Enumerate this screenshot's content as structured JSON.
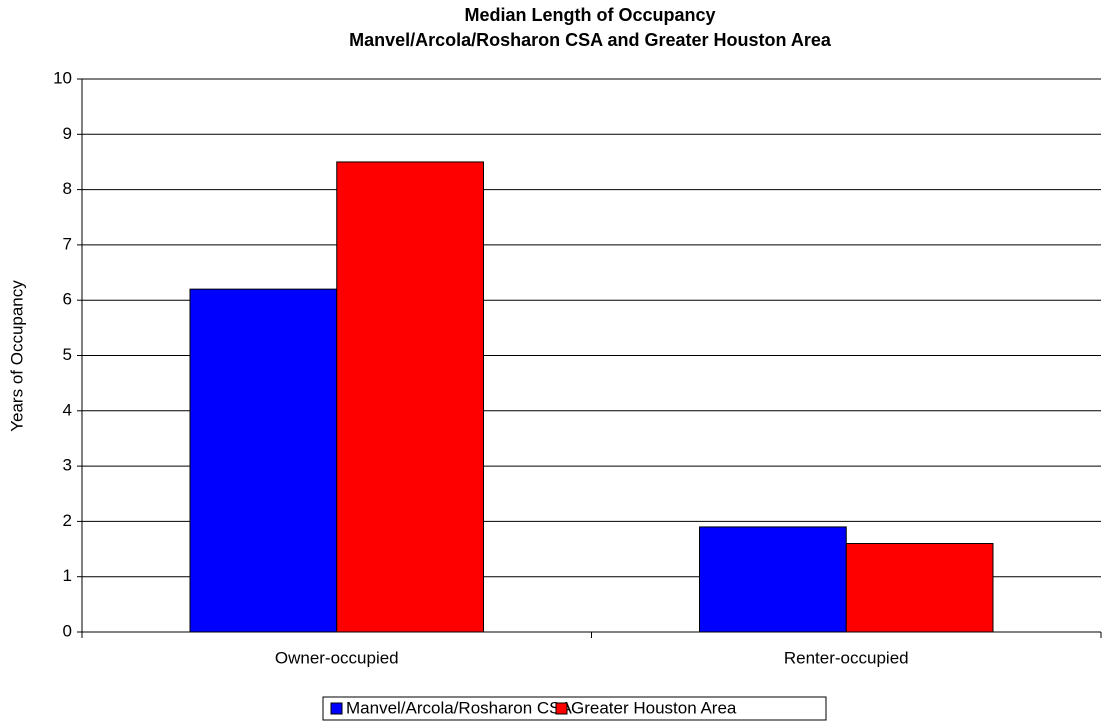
{
  "chart_data": {
    "type": "bar",
    "title": "Median Length of Occupancy",
    "subtitle": "Manvel/Arcola/Rosharon CSA and Greater Houston Area",
    "y_label": "Years of Occupancy",
    "categories": [
      "Owner-occupied",
      "Renter-occupied"
    ],
    "series": [
      {
        "name": "Manvel/Arcola/Rosharon CSA",
        "color": "#0000ff",
        "values": [
          6.2,
          1.9
        ]
      },
      {
        "name": "Greater Houston Area",
        "color": "#ff0000",
        "values": [
          8.5,
          1.6
        ]
      }
    ],
    "ylim": [
      0,
      10
    ],
    "yticks": [
      0,
      1,
      2,
      3,
      4,
      5,
      6,
      7,
      8,
      9,
      10
    ],
    "grid": true,
    "legend": "bottom"
  }
}
